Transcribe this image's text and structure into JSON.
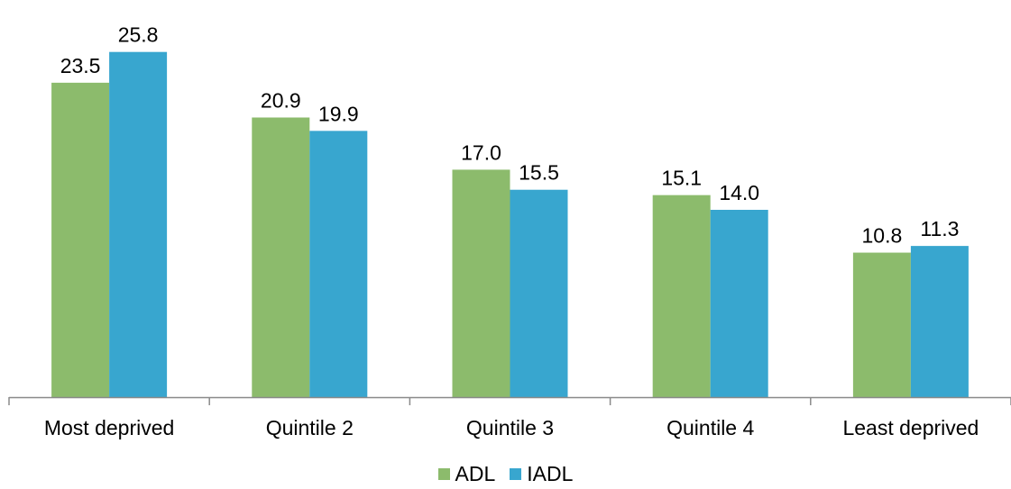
{
  "chart_data": {
    "type": "bar",
    "categories": [
      "Most deprived",
      "Quintile 2",
      "Quintile 3",
      "Quintile 4",
      "Least deprived"
    ],
    "series": [
      {
        "name": "ADL",
        "color": "#8CBB6C",
        "values": [
          23.5,
          20.9,
          17.0,
          15.1,
          10.8
        ],
        "labels": [
          "23.5",
          "20.9",
          "17.0",
          "15.1",
          "10.8"
        ]
      },
      {
        "name": "IADL",
        "color": "#38A6CF",
        "values": [
          25.8,
          19.9,
          15.5,
          14.0,
          11.3
        ],
        "labels": [
          "25.8",
          "19.9",
          "15.5",
          "14.0",
          "11.3"
        ]
      }
    ],
    "ylim": [
      0,
      28
    ],
    "title": "",
    "xlabel": "",
    "ylabel": "",
    "grid": false,
    "legend_position": "bottom"
  }
}
